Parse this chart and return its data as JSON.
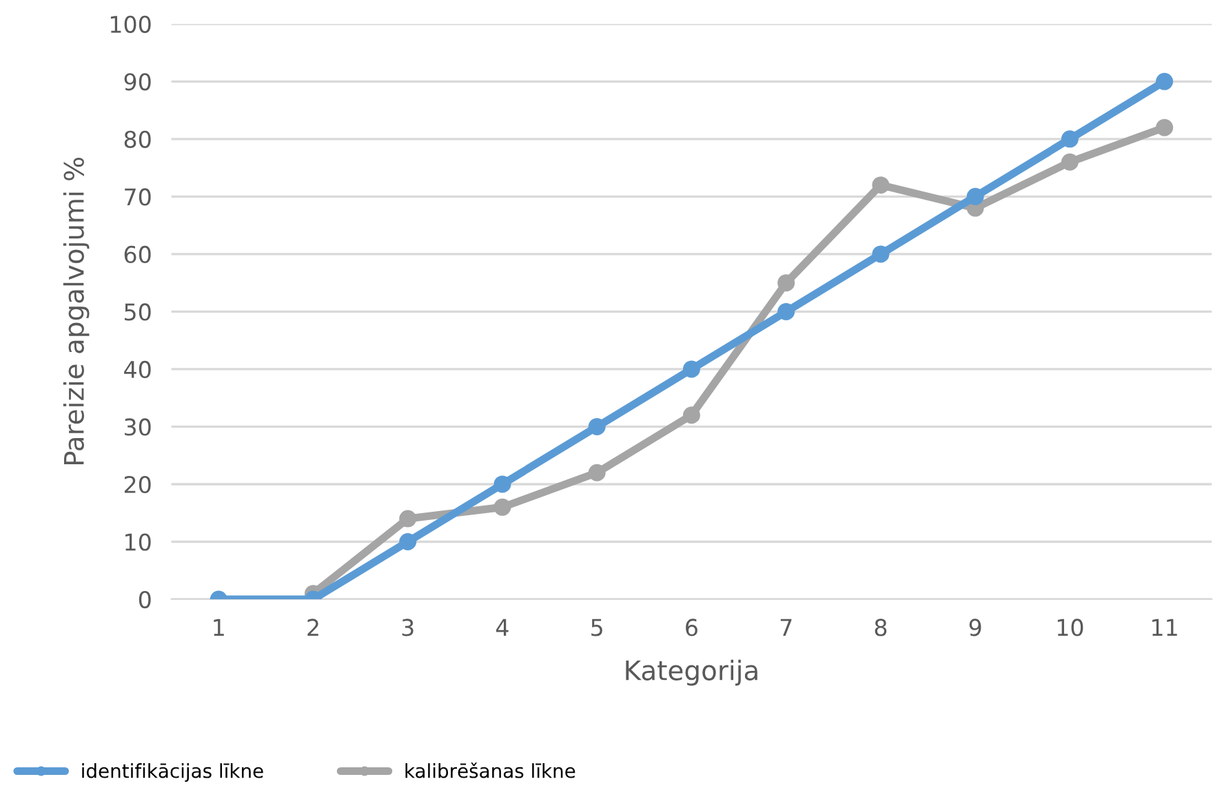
{
  "chart_data": {
    "type": "line",
    "xlabel": "Kategorija",
    "ylabel": "Pareizie apgalvojumi %",
    "categories": [
      "1",
      "2",
      "3",
      "4",
      "5",
      "6",
      "7",
      "8",
      "9",
      "10",
      "11"
    ],
    "series": [
      {
        "name": "identifikācijas līkne",
        "color": "#5b9bd5",
        "values": [
          0,
          0,
          10,
          20,
          30,
          40,
          50,
          60,
          70,
          80,
          90
        ]
      },
      {
        "name": "kalibrēšanas līkne",
        "color": "#a5a5a5",
        "values": [
          null,
          1,
          14,
          16,
          22,
          32,
          55,
          72,
          68,
          76,
          82
        ]
      }
    ],
    "ylim": [
      0,
      100
    ],
    "yticks": [
      0,
      10,
      20,
      30,
      40,
      50,
      60,
      70,
      80,
      90,
      100
    ],
    "grid": "y",
    "legend": "bottom left",
    "marker": "circle",
    "line_style": "solid"
  }
}
